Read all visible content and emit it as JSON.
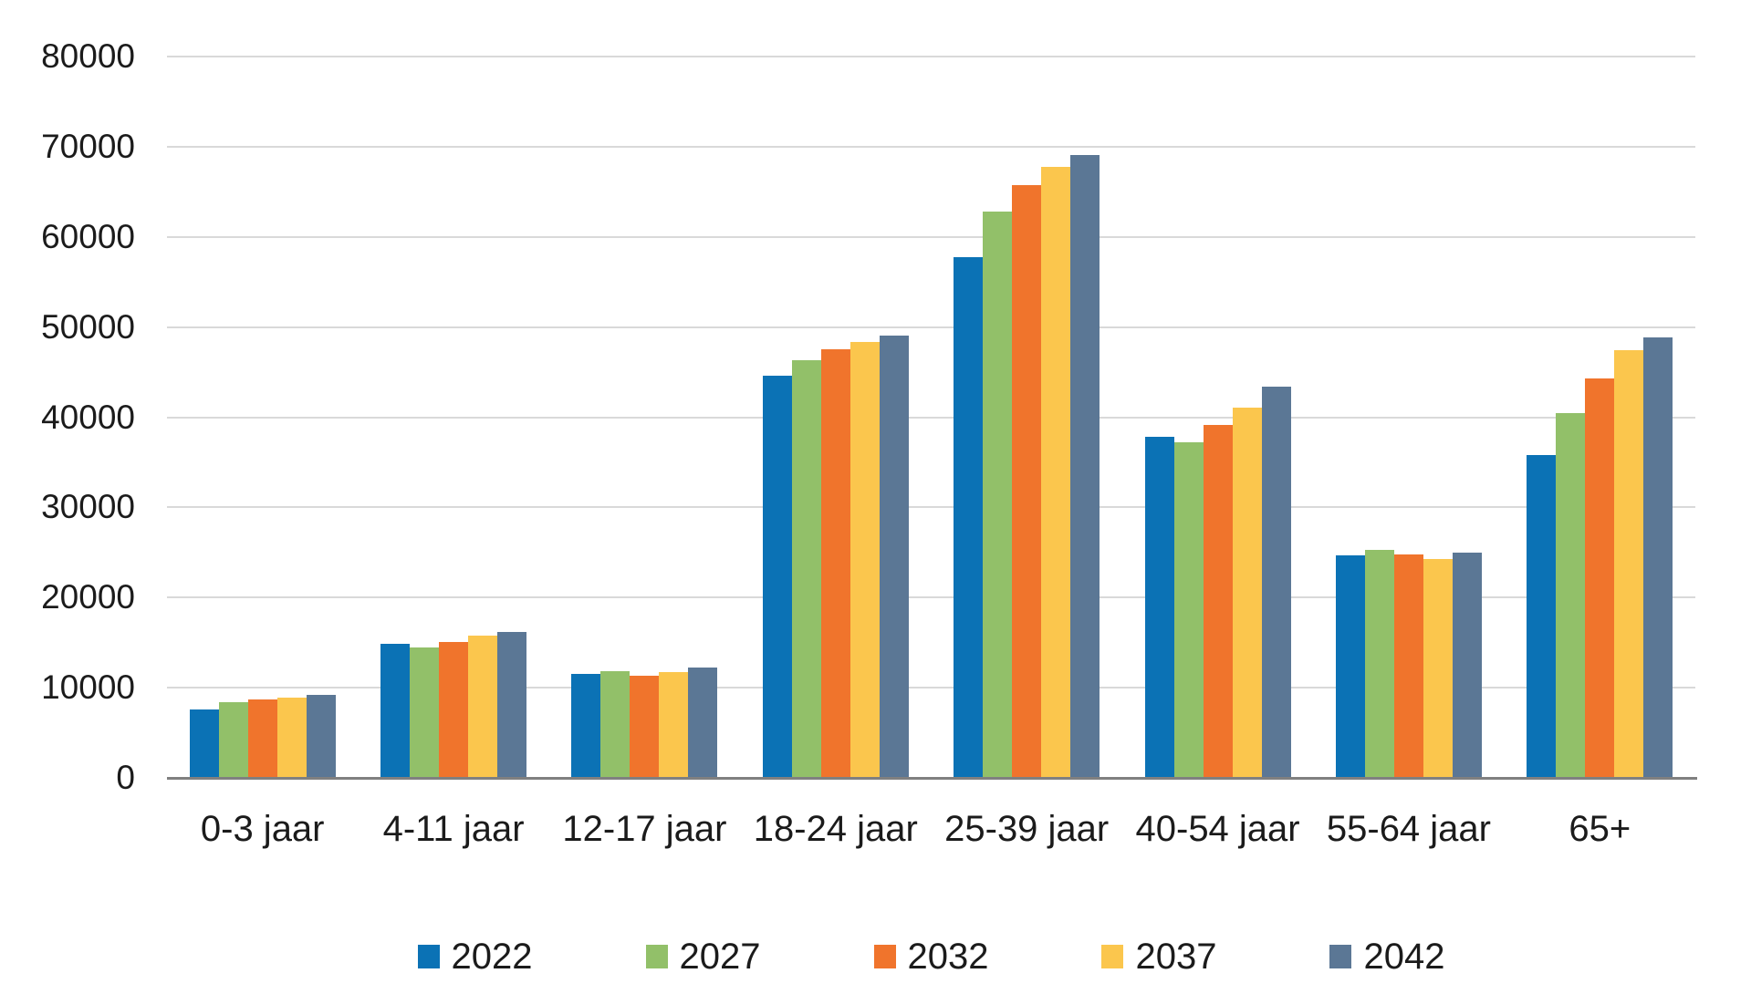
{
  "chart_data": {
    "type": "bar",
    "title": "",
    "categories": [
      "0-3 jaar",
      "4-11 jaar",
      "12-17 jaar",
      "18-24 jaar",
      "25-39 jaar",
      "40-54 jaar",
      "55-64 jaar",
      "65+"
    ],
    "series": [
      {
        "name": "2022",
        "color": "#0b72b5",
        "values": [
          7600,
          14900,
          11500,
          44600,
          57800,
          37800,
          24700,
          35800
        ]
      },
      {
        "name": "2027",
        "color": "#92c069",
        "values": [
          8400,
          14500,
          11800,
          46300,
          62800,
          37200,
          25300,
          40500
        ]
      },
      {
        "name": "2032",
        "color": "#f0742c",
        "values": [
          8700,
          15100,
          11300,
          47500,
          65700,
          39100,
          24800,
          44300
        ]
      },
      {
        "name": "2037",
        "color": "#fbc64d",
        "values": [
          8900,
          15800,
          11700,
          48300,
          67800,
          41100,
          24300,
          47400
        ]
      },
      {
        "name": "2042",
        "color": "#5b7795",
        "values": [
          9200,
          16200,
          12200,
          49100,
          69100,
          43400,
          25000,
          48900
        ]
      }
    ],
    "xlabel": "",
    "ylabel": "",
    "ylim": [
      0,
      80000
    ],
    "y_tick_step": 10000,
    "y_tick_labels": [
      "0",
      "10000",
      "20000",
      "30000",
      "40000",
      "50000",
      "60000",
      "70000",
      "80000"
    ],
    "grid": "horizontal",
    "legend_position": "bottom",
    "axis_color": "#808080",
    "gridline_color": "#d9d9d9",
    "text_color": "#1b1b1b"
  }
}
